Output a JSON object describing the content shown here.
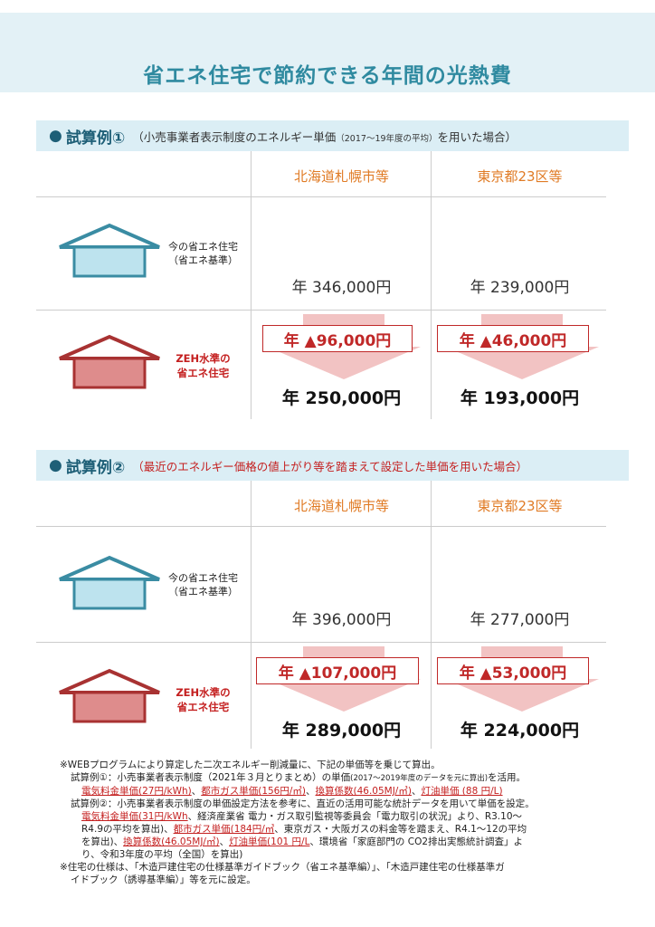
{
  "title": "省エネ住宅で節約できる年間の光熱費",
  "case1": {
    "bullet": "●",
    "heading": "試算例①",
    "note_main": "（小売事業者表示制度のエネルギー単価",
    "note_small": "（2017～19年度の平均）",
    "note_end": "を用いた場合）",
    "col1": "北海道札幌市等",
    "col2": "東京都23区等",
    "row1_label_line1": "今の省エネ住宅",
    "row1_label_line2": "（省エネ基準）",
    "row2_label_line1": "ZEH水準の",
    "row2_label_line2": "省エネ住宅",
    "sapporo_current": "年 346,000円",
    "tokyo_current": "年 239,000円",
    "sapporo_saving": "年 ▲96,000円",
    "tokyo_saving": "年 ▲46,000円",
    "sapporo_zeh": "年 250,000円",
    "tokyo_zeh": "年 193,000円"
  },
  "case2": {
    "bullet": "●",
    "heading": "試算例②",
    "note": "（最近のエネルギー価格の値上がり等を踏まえて設定した単価を用いた場合）",
    "col1": "北海道札幌市等",
    "col2": "東京都23区等",
    "row1_label_line1": "今の省エネ住宅",
    "row1_label_line2": "（省エネ基準）",
    "row2_label_line1": "ZEH水準の",
    "row2_label_line2": "省エネ住宅",
    "sapporo_current": "年 396,000円",
    "tokyo_current": "年 277,000円",
    "sapporo_saving": "年 ▲107,000円",
    "tokyo_saving": "年 ▲53,000円",
    "sapporo_zeh": "年 289,000円",
    "tokyo_zeh": "年 224,000円"
  },
  "notes": {
    "n1": "※WEBプログラムにより算定した二次エネルギー削減量に、下記の単価等を乗じて算出。",
    "c1_a": "試算例①：小売事業者表示制度（2021年３月とりまとめ）の単価",
    "c1_small": "(2017～2019年度のデータを元に算出)",
    "c1_b": "を活用。",
    "c1_u1": "電気料金単価(27円/kWh)",
    "c1_s1": "、",
    "c1_u2": "都市ガス単価(156円/㎥)",
    "c1_s2": "、",
    "c1_u3": "換算係数(46.05MJ/㎥)",
    "c1_s3": "、",
    "c1_u4": "灯油単価 (88 円/L)",
    "c2_a": "試算例②：小売事業者表示制度の単価設定方法を参考に、直近の活用可能な統計データを用いて単価を設定。",
    "c2_u1": "電気料金単価(31円/kWh",
    "c2_t1": "、経済産業省 電力・ガス取引監視等委員会「電力取引の状況」より、R3.10～",
    "c2_t2": "R4.9の平均を算出)",
    "c2_s1": "、",
    "c2_u2": "都市ガス単価(184円/㎥",
    "c2_t3": "、東京ガス・大阪ガスの料金等を踏まえ、R4.1～12の平均",
    "c2_t4": "を算出)",
    "c2_s2": "、",
    "c2_u3": "換算係数(46.05MJ/㎥)",
    "c2_s3": "、",
    "c2_u4": "灯油単価(101 円/L",
    "c2_t5": "、環境省「家庭部門の CO2排出実態統計調査」よ",
    "c2_t6": "り、令和3年度の平均（全国）を算出)",
    "n2_a": "※住宅の仕様は、「木造戸建住宅の仕様基準ガイドブック（省エネ基準編）」、「木造戸建住宅の仕様基準ガ",
    "n2_b": "イドブック（誘導基準編）」等を元に設定。"
  },
  "colors": {
    "title": "#2f8aa0",
    "band": "#e3f1f6",
    "city": "#e07b25",
    "saving": "#c02828",
    "house_current": "#3a8ca3",
    "house_zeh": "#a83232"
  }
}
